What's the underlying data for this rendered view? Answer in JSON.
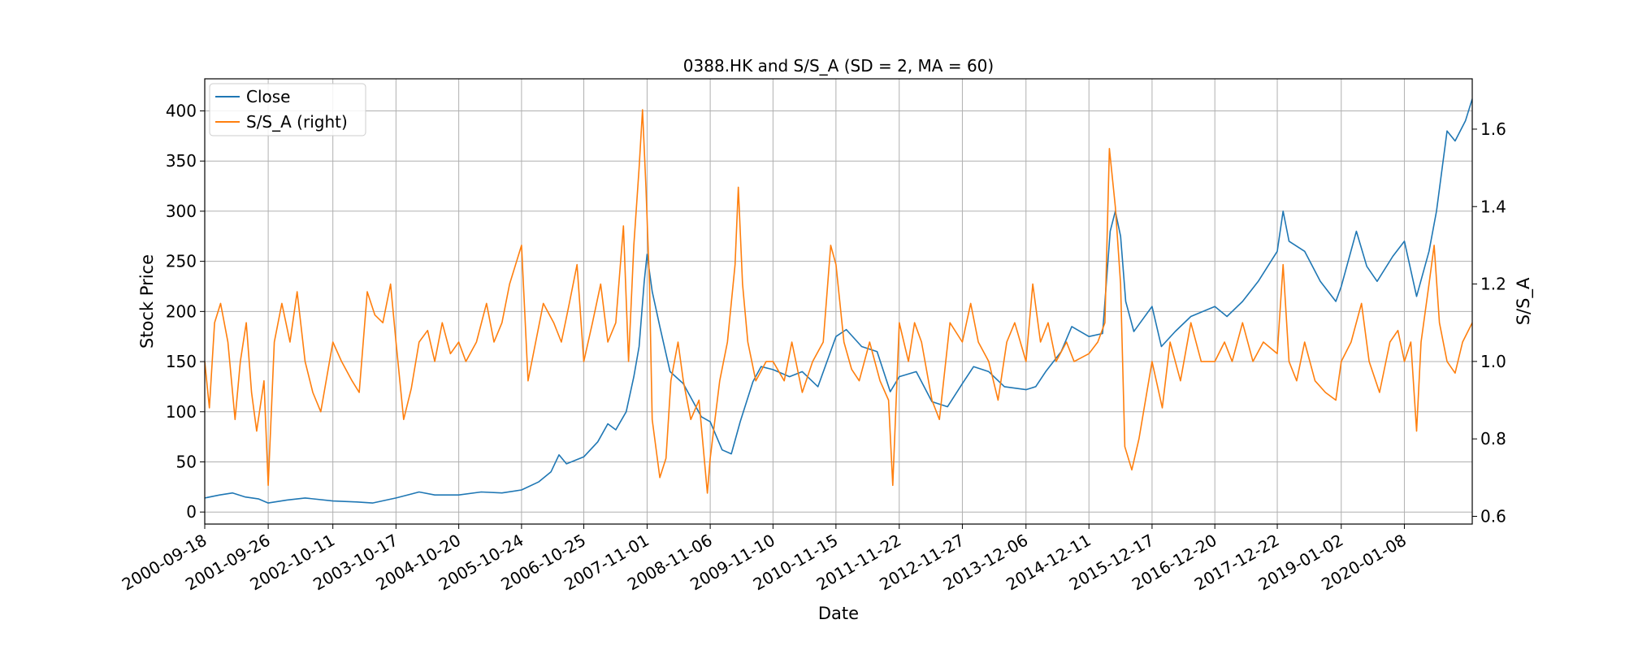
{
  "chart_data": {
    "type": "line",
    "title": "0388.HK and S/S_A (SD = 2, MA = 60)",
    "xlabel": "Date",
    "ylabel": "Stock Price",
    "ylabel_right": "S/S_A",
    "xlim": [
      "2000-09-18",
      "2021-02-10"
    ],
    "ylim": [
      -12,
      432
    ],
    "ylim_right": [
      0.58,
      1.73
    ],
    "grid": true,
    "legend_position": "top-left",
    "x_ticks": [
      "2000-09-18",
      "2001-09-26",
      "2002-10-11",
      "2003-10-17",
      "2004-10-20",
      "2005-10-24",
      "2006-10-25",
      "2007-11-01",
      "2008-11-06",
      "2009-11-10",
      "2010-11-15",
      "2011-11-22",
      "2012-11-27",
      "2013-12-06",
      "2014-12-11",
      "2015-12-17",
      "2016-12-20",
      "2017-12-22",
      "2019-01-02",
      "2020-01-08"
    ],
    "y_ticks": [
      0,
      50,
      100,
      150,
      200,
      250,
      300,
      350,
      400
    ],
    "y_ticks_right": [
      0.6,
      0.8,
      1.0,
      1.2,
      1.4,
      1.6
    ],
    "series": [
      {
        "name": "Close",
        "axis": "left",
        "color": "#1f77b4",
        "points": [
          [
            "2000-09-18",
            14
          ],
          [
            "2000-12-15",
            17
          ],
          [
            "2001-03-01",
            19
          ],
          [
            "2001-05-15",
            15
          ],
          [
            "2001-08-01",
            13
          ],
          [
            "2001-09-26",
            9
          ],
          [
            "2002-01-15",
            12
          ],
          [
            "2002-05-01",
            14
          ],
          [
            "2002-10-11",
            11
          ],
          [
            "2003-03-01",
            10
          ],
          [
            "2003-06-01",
            9
          ],
          [
            "2003-10-17",
            14
          ],
          [
            "2004-03-01",
            20
          ],
          [
            "2004-06-01",
            17
          ],
          [
            "2004-10-20",
            17
          ],
          [
            "2005-03-01",
            20
          ],
          [
            "2005-07-01",
            19
          ],
          [
            "2005-10-24",
            22
          ],
          [
            "2006-02-01",
            30
          ],
          [
            "2006-04-15",
            40
          ],
          [
            "2006-06-01",
            57
          ],
          [
            "2006-07-15",
            48
          ],
          [
            "2006-10-25",
            55
          ],
          [
            "2007-01-15",
            70
          ],
          [
            "2007-03-15",
            88
          ],
          [
            "2007-05-01",
            82
          ],
          [
            "2007-07-01",
            100
          ],
          [
            "2007-08-15",
            135
          ],
          [
            "2007-09-15",
            165
          ],
          [
            "2007-10-15",
            230
          ],
          [
            "2007-11-01",
            257
          ],
          [
            "2007-12-01",
            220
          ],
          [
            "2008-01-15",
            185
          ],
          [
            "2008-03-15",
            140
          ],
          [
            "2008-06-01",
            128
          ],
          [
            "2008-09-15",
            95
          ],
          [
            "2008-11-06",
            90
          ],
          [
            "2009-01-15",
            62
          ],
          [
            "2009-03-10",
            58
          ],
          [
            "2009-05-01",
            90
          ],
          [
            "2009-07-15",
            130
          ],
          [
            "2009-09-01",
            145
          ],
          [
            "2009-11-10",
            142
          ],
          [
            "2010-02-15",
            135
          ],
          [
            "2010-05-01",
            140
          ],
          [
            "2010-08-01",
            125
          ],
          [
            "2010-11-15",
            175
          ],
          [
            "2011-01-15",
            182
          ],
          [
            "2011-04-15",
            165
          ],
          [
            "2011-07-15",
            160
          ],
          [
            "2011-09-30",
            120
          ],
          [
            "2011-11-22",
            135
          ],
          [
            "2012-03-01",
            140
          ],
          [
            "2012-06-01",
            110
          ],
          [
            "2012-09-01",
            105
          ],
          [
            "2012-11-27",
            128
          ],
          [
            "2013-02-01",
            145
          ],
          [
            "2013-05-01",
            140
          ],
          [
            "2013-08-01",
            125
          ],
          [
            "2013-12-06",
            122
          ],
          [
            "2014-02-01",
            125
          ],
          [
            "2014-04-01",
            140
          ],
          [
            "2014-07-01",
            160
          ],
          [
            "2014-09-01",
            185
          ],
          [
            "2014-12-11",
            175
          ],
          [
            "2015-03-01",
            178
          ],
          [
            "2015-04-15",
            280
          ],
          [
            "2015-05-15",
            300
          ],
          [
            "2015-06-15",
            275
          ],
          [
            "2015-07-15",
            210
          ],
          [
            "2015-09-01",
            180
          ],
          [
            "2015-12-17",
            205
          ],
          [
            "2016-02-10",
            165
          ],
          [
            "2016-05-01",
            180
          ],
          [
            "2016-08-01",
            195
          ],
          [
            "2016-12-20",
            205
          ],
          [
            "2017-03-01",
            195
          ],
          [
            "2017-06-01",
            210
          ],
          [
            "2017-09-01",
            230
          ],
          [
            "2017-12-22",
            260
          ],
          [
            "2018-01-25",
            300
          ],
          [
            "2018-03-01",
            270
          ],
          [
            "2018-06-01",
            260
          ],
          [
            "2018-09-01",
            230
          ],
          [
            "2018-12-01",
            210
          ],
          [
            "2019-01-02",
            225
          ],
          [
            "2019-04-01",
            280
          ],
          [
            "2019-06-01",
            245
          ],
          [
            "2019-08-01",
            230
          ],
          [
            "2019-11-01",
            255
          ],
          [
            "2020-01-08",
            270
          ],
          [
            "2020-03-20",
            215
          ],
          [
            "2020-06-01",
            260
          ],
          [
            "2020-07-15",
            300
          ],
          [
            "2020-08-15",
            340
          ],
          [
            "2020-09-15",
            380
          ],
          [
            "2020-11-01",
            370
          ],
          [
            "2021-01-01",
            390
          ],
          [
            "2021-02-10",
            412
          ]
        ]
      },
      {
        "name": "S/S_A (right)",
        "axis": "right",
        "color": "#ff7f0e",
        "points": [
          [
            "2000-09-18",
            1.0
          ],
          [
            "2000-10-15",
            0.88
          ],
          [
            "2000-11-15",
            1.1
          ],
          [
            "2000-12-20",
            1.15
          ],
          [
            "2001-02-01",
            1.05
          ],
          [
            "2001-03-15",
            0.85
          ],
          [
            "2001-04-15",
            1.0
          ],
          [
            "2001-05-20",
            1.1
          ],
          [
            "2001-06-20",
            0.92
          ],
          [
            "2001-07-20",
            0.82
          ],
          [
            "2001-09-01",
            0.95
          ],
          [
            "2001-09-26",
            0.68
          ],
          [
            "2001-11-01",
            1.05
          ],
          [
            "2001-12-15",
            1.15
          ],
          [
            "2002-02-01",
            1.05
          ],
          [
            "2002-03-15",
            1.18
          ],
          [
            "2002-05-01",
            1.0
          ],
          [
            "2002-06-15",
            0.92
          ],
          [
            "2002-08-01",
            0.87
          ],
          [
            "2002-10-11",
            1.05
          ],
          [
            "2002-12-01",
            1.0
          ],
          [
            "2003-02-01",
            0.95
          ],
          [
            "2003-03-15",
            0.92
          ],
          [
            "2003-05-01",
            1.18
          ],
          [
            "2003-06-15",
            1.12
          ],
          [
            "2003-08-01",
            1.1
          ],
          [
            "2003-09-15",
            1.2
          ],
          [
            "2003-10-17",
            1.05
          ],
          [
            "2003-12-01",
            0.85
          ],
          [
            "2004-01-15",
            0.93
          ],
          [
            "2004-03-01",
            1.05
          ],
          [
            "2004-04-20",
            1.08
          ],
          [
            "2004-06-01",
            1.0
          ],
          [
            "2004-07-15",
            1.1
          ],
          [
            "2004-09-01",
            1.02
          ],
          [
            "2004-10-20",
            1.05
          ],
          [
            "2004-12-01",
            1.0
          ],
          [
            "2005-02-01",
            1.05
          ],
          [
            "2005-04-01",
            1.15
          ],
          [
            "2005-05-15",
            1.05
          ],
          [
            "2005-07-01",
            1.1
          ],
          [
            "2005-08-15",
            1.2
          ],
          [
            "2005-10-24",
            1.3
          ],
          [
            "2005-12-01",
            0.95
          ],
          [
            "2006-01-15",
            1.05
          ],
          [
            "2006-03-01",
            1.15
          ],
          [
            "2006-05-01",
            1.1
          ],
          [
            "2006-06-15",
            1.05
          ],
          [
            "2006-08-01",
            1.15
          ],
          [
            "2006-09-15",
            1.25
          ],
          [
            "2006-10-25",
            1.0
          ],
          [
            "2006-12-15",
            1.1
          ],
          [
            "2007-02-01",
            1.2
          ],
          [
            "2007-03-15",
            1.05
          ],
          [
            "2007-05-01",
            1.1
          ],
          [
            "2007-06-15",
            1.35
          ],
          [
            "2007-07-15",
            1.0
          ],
          [
            "2007-08-15",
            1.3
          ],
          [
            "2007-09-15",
            1.5
          ],
          [
            "2007-10-05",
            1.65
          ],
          [
            "2007-10-25",
            1.45
          ],
          [
            "2007-11-15",
            1.2
          ],
          [
            "2007-12-01",
            0.85
          ],
          [
            "2008-01-15",
            0.7
          ],
          [
            "2008-02-20",
            0.75
          ],
          [
            "2008-03-20",
            0.95
          ],
          [
            "2008-05-01",
            1.05
          ],
          [
            "2008-06-01",
            0.95
          ],
          [
            "2008-07-15",
            0.85
          ],
          [
            "2008-09-01",
            0.9
          ],
          [
            "2008-10-20",
            0.66
          ],
          [
            "2008-11-06",
            0.75
          ],
          [
            "2009-01-01",
            0.95
          ],
          [
            "2009-02-15",
            1.05
          ],
          [
            "2009-04-01",
            1.25
          ],
          [
            "2009-04-20",
            1.45
          ],
          [
            "2009-05-15",
            1.2
          ],
          [
            "2009-06-15",
            1.05
          ],
          [
            "2009-08-01",
            0.95
          ],
          [
            "2009-10-01",
            1.0
          ],
          [
            "2009-11-10",
            1.0
          ],
          [
            "2010-01-15",
            0.95
          ],
          [
            "2010-03-01",
            1.05
          ],
          [
            "2010-05-01",
            0.92
          ],
          [
            "2010-07-01",
            1.0
          ],
          [
            "2010-09-01",
            1.05
          ],
          [
            "2010-10-15",
            1.3
          ],
          [
            "2010-11-15",
            1.25
          ],
          [
            "2011-01-01",
            1.05
          ],
          [
            "2011-02-15",
            0.98
          ],
          [
            "2011-04-01",
            0.95
          ],
          [
            "2011-06-01",
            1.05
          ],
          [
            "2011-08-01",
            0.95
          ],
          [
            "2011-09-20",
            0.9
          ],
          [
            "2011-10-15",
            0.68
          ],
          [
            "2011-11-22",
            1.1
          ],
          [
            "2012-01-15",
            1.0
          ],
          [
            "2012-02-20",
            1.1
          ],
          [
            "2012-04-01",
            1.05
          ],
          [
            "2012-06-01",
            0.9
          ],
          [
            "2012-07-15",
            0.85
          ],
          [
            "2012-09-15",
            1.1
          ],
          [
            "2012-11-27",
            1.05
          ],
          [
            "2013-01-15",
            1.15
          ],
          [
            "2013-03-01",
            1.05
          ],
          [
            "2013-05-01",
            1.0
          ],
          [
            "2013-06-25",
            0.9
          ],
          [
            "2013-08-15",
            1.05
          ],
          [
            "2013-10-01",
            1.1
          ],
          [
            "2013-12-06",
            1.0
          ],
          [
            "2014-01-15",
            1.2
          ],
          [
            "2014-03-01",
            1.05
          ],
          [
            "2014-04-15",
            1.1
          ],
          [
            "2014-06-01",
            1.0
          ],
          [
            "2014-08-01",
            1.05
          ],
          [
            "2014-09-15",
            1.0
          ],
          [
            "2014-12-11",
            1.02
          ],
          [
            "2015-02-01",
            1.05
          ],
          [
            "2015-03-15",
            1.1
          ],
          [
            "2015-04-10",
            1.55
          ],
          [
            "2015-05-15",
            1.4
          ],
          [
            "2015-06-15",
            1.2
          ],
          [
            "2015-07-10",
            0.78
          ],
          [
            "2015-08-20",
            0.72
          ],
          [
            "2015-10-01",
            0.8
          ],
          [
            "2015-12-17",
            1.0
          ],
          [
            "2016-02-15",
            0.88
          ],
          [
            "2016-04-01",
            1.05
          ],
          [
            "2016-06-01",
            0.95
          ],
          [
            "2016-08-01",
            1.1
          ],
          [
            "2016-10-01",
            1.0
          ],
          [
            "2016-12-20",
            1.0
          ],
          [
            "2017-02-15",
            1.05
          ],
          [
            "2017-04-01",
            1.0
          ],
          [
            "2017-06-01",
            1.1
          ],
          [
            "2017-08-01",
            1.0
          ],
          [
            "2017-10-01",
            1.05
          ],
          [
            "2017-12-22",
            1.02
          ],
          [
            "2018-01-25",
            1.25
          ],
          [
            "2018-03-01",
            1.0
          ],
          [
            "2018-04-15",
            0.95
          ],
          [
            "2018-06-01",
            1.05
          ],
          [
            "2018-08-01",
            0.95
          ],
          [
            "2018-10-01",
            0.92
          ],
          [
            "2018-12-01",
            0.9
          ],
          [
            "2019-01-02",
            1.0
          ],
          [
            "2019-03-01",
            1.05
          ],
          [
            "2019-05-01",
            1.15
          ],
          [
            "2019-06-15",
            1.0
          ],
          [
            "2019-08-15",
            0.92
          ],
          [
            "2019-10-15",
            1.05
          ],
          [
            "2019-12-01",
            1.08
          ],
          [
            "2020-01-08",
            1.0
          ],
          [
            "2020-02-15",
            1.05
          ],
          [
            "2020-03-20",
            0.82
          ],
          [
            "2020-04-15",
            1.05
          ],
          [
            "2020-06-01",
            1.2
          ],
          [
            "2020-07-01",
            1.3
          ],
          [
            "2020-08-01",
            1.1
          ],
          [
            "2020-09-15",
            1.0
          ],
          [
            "2020-11-01",
            0.97
          ],
          [
            "2020-12-15",
            1.05
          ],
          [
            "2021-02-10",
            1.1
          ]
        ]
      }
    ]
  }
}
